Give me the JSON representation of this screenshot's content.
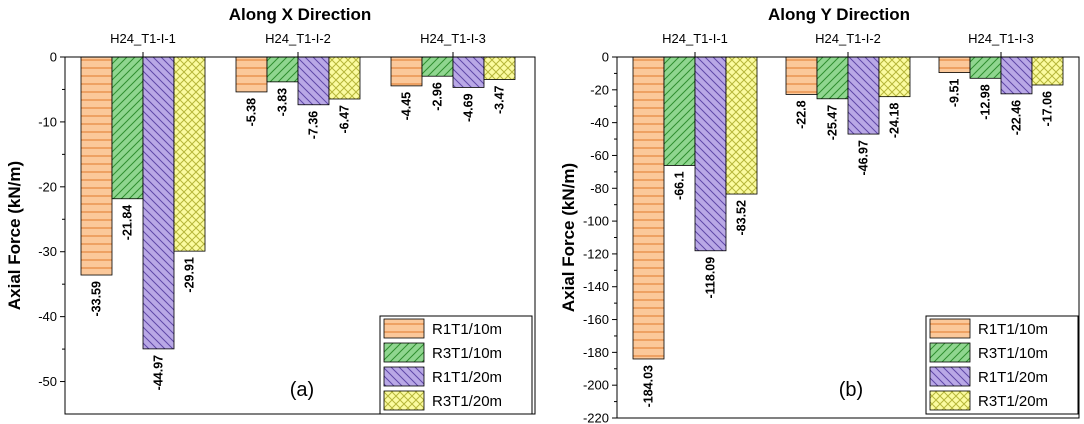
{
  "chart_data": [
    {
      "type": "bar",
      "title": "Along X Direction",
      "ylabel": "Axial Force (kN/m)",
      "panel_label": "(a)",
      "categories": [
        "H24_T1-I-1",
        "H24_T1-I-2",
        "H24_T1-I-3"
      ],
      "ylim": [
        -55,
        0
      ],
      "yticks": [
        0,
        -10,
        -20,
        -30,
        -40,
        -50
      ],
      "series": [
        {
          "name": "R1T1/10m",
          "values": [
            -33.59,
            -5.38,
            -4.45
          ],
          "labels": [
            "-33.59",
            "-5.38",
            "-4.45"
          ]
        },
        {
          "name": "R3T1/10m",
          "values": [
            -21.84,
            -3.83,
            -2.96
          ],
          "labels": [
            "-21.84",
            "-3.83",
            "-2.96"
          ]
        },
        {
          "name": "R1T1/20m",
          "values": [
            -44.97,
            -7.36,
            -4.69
          ],
          "labels": [
            "-44.97",
            "-7.36",
            "-4.69"
          ]
        },
        {
          "name": "R3T1/20m",
          "values": [
            -29.91,
            -6.47,
            -3.47
          ],
          "labels": [
            "-29.91",
            "-6.47",
            "-3.47"
          ]
        }
      ],
      "legend_position": "bottom-right"
    },
    {
      "type": "bar",
      "title": "Along Y Direction",
      "ylabel": "Axial Force (kN/m)",
      "panel_label": "(b)",
      "categories": [
        "H24_T1-I-1",
        "H24_T1-I-2",
        "H24_T1-I-3"
      ],
      "ylim": [
        -220,
        0
      ],
      "yticks": [
        0,
        -20,
        -40,
        -60,
        -80,
        -100,
        -120,
        -140,
        -160,
        -180,
        -200,
        -220
      ],
      "series": [
        {
          "name": "R1T1/10m",
          "values": [
            -184.03,
            -22.8,
            -9.51
          ],
          "labels": [
            "-184.03",
            "-22.8",
            "-9.51"
          ]
        },
        {
          "name": "R3T1/10m",
          "values": [
            -66.1,
            -25.47,
            -12.98
          ],
          "labels": [
            "-66.1",
            "-25.47",
            "-12.98"
          ]
        },
        {
          "name": "R1T1/20m",
          "values": [
            -118.09,
            -46.97,
            -22.46
          ],
          "labels": [
            "-118.09",
            "-46.97",
            "-22.46"
          ]
        },
        {
          "name": "R3T1/20m",
          "values": [
            -83.52,
            -24.18,
            -17.06
          ],
          "labels": [
            "-83.52",
            "-24.18",
            "-17.06"
          ]
        }
      ],
      "legend_position": "bottom-right"
    }
  ],
  "colors": {
    "series_fill": [
      "#fbc89a",
      "#8fd68f",
      "#b9a8e6",
      "#fbfba0"
    ],
    "series_line": [
      "#e07a2c",
      "#2f8f2f",
      "#6048a8",
      "#b6b63a"
    ]
  }
}
